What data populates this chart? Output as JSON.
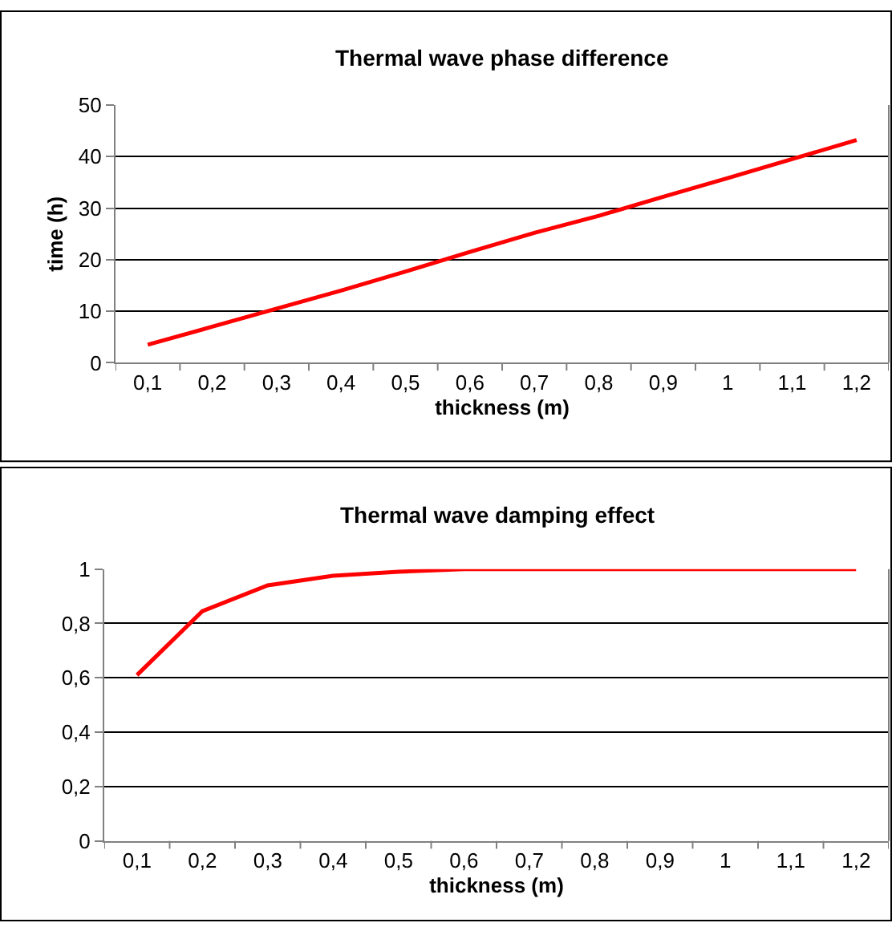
{
  "chart_data": [
    {
      "type": "line",
      "title": "Thermal wave phase difference",
      "xlabel": "thickness (m)",
      "ylabel": "time (h)",
      "categories": [
        "0,1",
        "0,2",
        "0,3",
        "0,4",
        "0,5",
        "0,6",
        "0,7",
        "0,8",
        "0,9",
        "1",
        "1,1",
        "1,2"
      ],
      "series": [
        {
          "color": "#ff0000",
          "values": [
            3.5,
            7,
            10.5,
            14,
            17.7,
            21.5,
            25.2,
            28.5,
            32.2,
            35.8,
            39.5,
            43.2
          ]
        }
      ],
      "ylim": [
        0,
        50
      ],
      "yticks": [
        0,
        10,
        20,
        30,
        40,
        50
      ],
      "grid": "y",
      "marker": "none",
      "line_style": "solid"
    },
    {
      "type": "line",
      "title": "Thermal wave damping effect",
      "xlabel": "thickness (m)",
      "categories": [
        "0,1",
        "0,2",
        "0,3",
        "0,4",
        "0,5",
        "0,6",
        "0,7",
        "0,8",
        "0,9",
        "1",
        "1,1",
        "1,2"
      ],
      "series": [
        {
          "color": "#ff0000",
          "values": [
            0.61,
            0.845,
            0.94,
            0.975,
            0.99,
            1,
            1,
            1,
            1,
            1,
            1,
            1
          ]
        }
      ],
      "ylim": [
        0,
        1
      ],
      "yticks": [
        {
          "value": 0,
          "label": "0"
        },
        {
          "value": 0.2,
          "label": "0,2"
        },
        {
          "value": 0.4,
          "label": "0,4"
        },
        {
          "value": 0.6,
          "label": "0,6"
        },
        {
          "value": 0.8,
          "label": "0,8"
        },
        {
          "value": 1,
          "label": "1"
        }
      ],
      "grid": "y",
      "marker": "none",
      "line_style": "solid"
    }
  ]
}
